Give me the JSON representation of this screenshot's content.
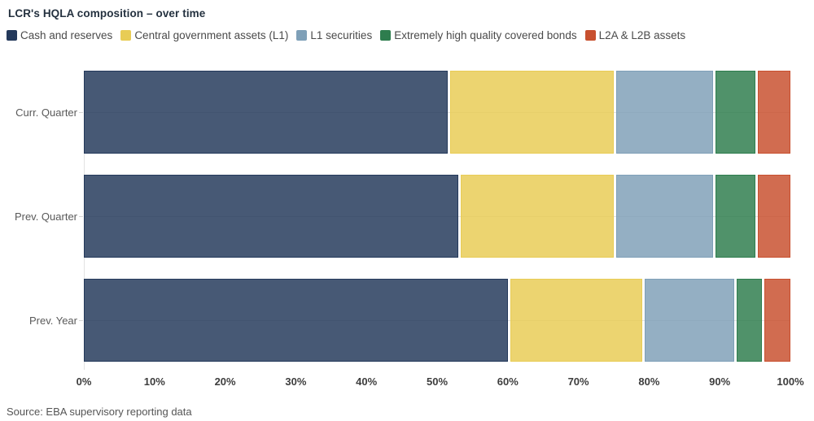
{
  "title": "LCR's HQLA composition – over time",
  "source": "Source: EBA supervisory reporting data",
  "chart_data": {
    "type": "bar",
    "orientation": "horizontal",
    "stacked": true,
    "title": "LCR's HQLA composition – over time",
    "categories": [
      "Curr. Quarter",
      "Prev. Quarter",
      "Prev. Year"
    ],
    "series": [
      {
        "name": "Cash and reserves",
        "color": "#24395B",
        "values": [
          51.5,
          53,
          60
        ]
      },
      {
        "name": "Central government assets (L1)",
        "color": "#E8CC55",
        "values": [
          23.5,
          22,
          19
        ]
      },
      {
        "name": "L1 securities",
        "color": "#7FA0B8",
        "values": [
          14,
          14,
          13
        ]
      },
      {
        "name": "Extremely high quality covered bonds",
        "color": "#2E7D4E",
        "values": [
          6,
          6,
          4
        ]
      },
      {
        "name": "L2A & L2B assets",
        "color": "#C8502F",
        "values": [
          5,
          5,
          4
        ]
      }
    ],
    "xlabel": "",
    "ylabel": "",
    "xlim": [
      0,
      100
    ],
    "x_ticks": [
      "0%",
      "10%",
      "20%",
      "30%",
      "40%",
      "50%",
      "60%",
      "70%",
      "80%",
      "90%",
      "100%"
    ],
    "legend_position": "top",
    "grid": false
  }
}
